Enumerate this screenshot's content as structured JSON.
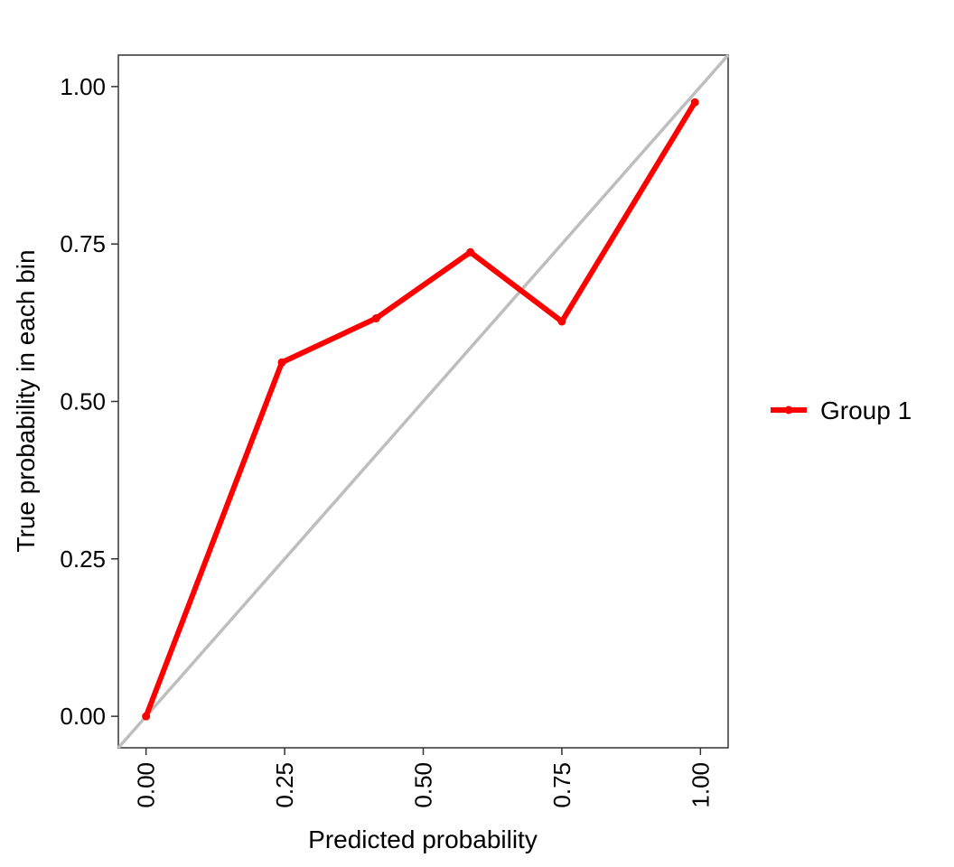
{
  "chart_data": {
    "type": "line",
    "title": "",
    "xlabel": "Predicted probability",
    "ylabel": "True probability in each bin",
    "xlim": [
      -0.05,
      1.05
    ],
    "ylim": [
      -0.05,
      1.05
    ],
    "x_ticks": [
      0,
      0.25,
      0.5,
      0.75,
      1
    ],
    "x_tick_labels": [
      "0.00",
      "0.25",
      "0.50",
      "0.75",
      "1.00"
    ],
    "y_ticks": [
      0,
      0.25,
      0.5,
      0.75,
      1
    ],
    "y_tick_labels": [
      "0.00",
      "0.25",
      "0.50",
      "0.75",
      "1.00"
    ],
    "grid": false,
    "legend_position": "right",
    "reference_line": {
      "from": [
        -0.05,
        -0.05
      ],
      "to": [
        1.05,
        1.05
      ],
      "color": "#bebebe"
    },
    "series": [
      {
        "name": "Group 1",
        "color": "#ff0000",
        "x": [
          0.0,
          0.245,
          0.415,
          0.585,
          0.75,
          0.99
        ],
        "y": [
          0.0,
          0.562,
          0.632,
          0.737,
          0.627,
          0.975
        ]
      }
    ]
  }
}
